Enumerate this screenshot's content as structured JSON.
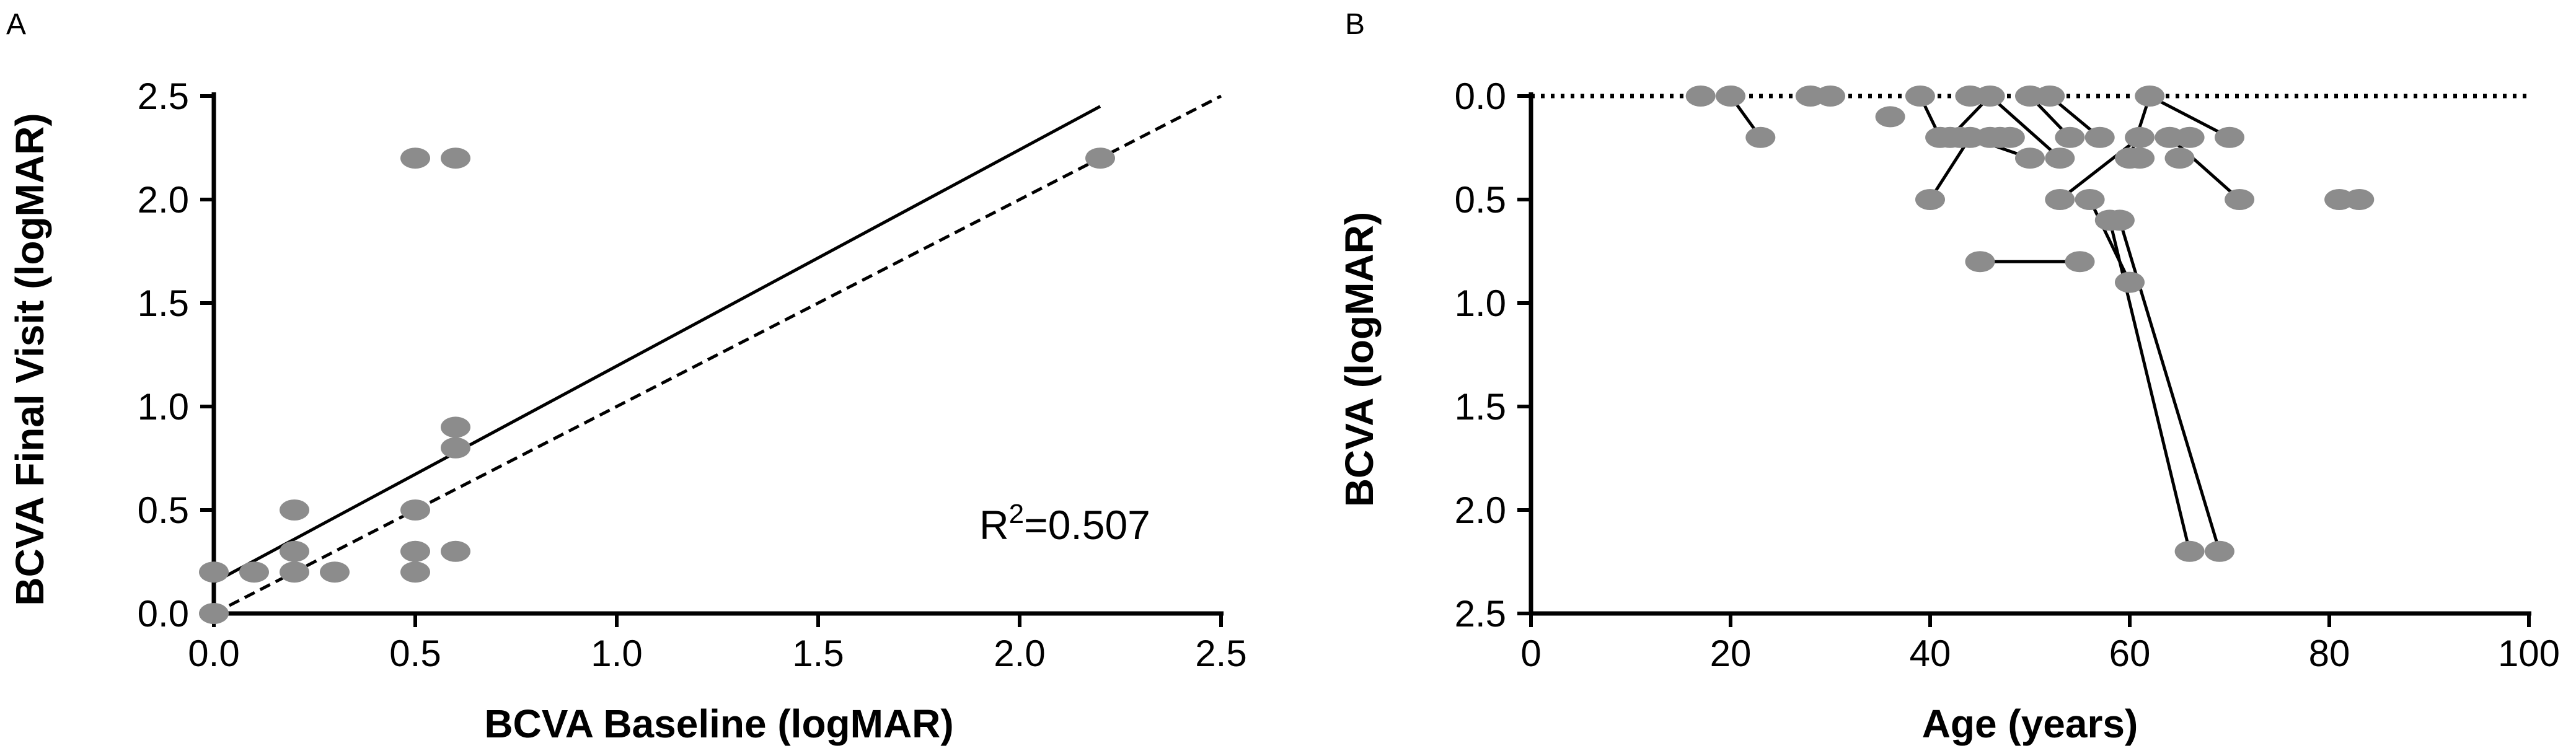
{
  "figure": {
    "panels": [
      "A",
      "B"
    ]
  },
  "chart_data": [
    {
      "type": "scatter",
      "panel": "A",
      "title": "",
      "xlabel": "BCVA Baseline (logMAR)",
      "ylabel": "BCVA Final Visit (logMAR)",
      "xlim": [
        0,
        2.5
      ],
      "ylim": [
        0,
        2.5
      ],
      "xticks": [
        0.0,
        0.5,
        1.0,
        1.5,
        2.0,
        2.5
      ],
      "xtick_labels": [
        "0.0",
        "0.5",
        "1.0",
        "1.5",
        "2.0",
        "2.5"
      ],
      "yticks": [
        0.0,
        0.5,
        1.0,
        1.5,
        2.0,
        2.5
      ],
      "ytick_labels": [
        "0.0",
        "0.5",
        "1.0",
        "1.5",
        "2.0",
        "2.5"
      ],
      "grid": false,
      "points": [
        {
          "x": 0.0,
          "y": 0.2
        },
        {
          "x": 0.0,
          "y": 0.0
        },
        {
          "x": 0.1,
          "y": 0.2
        },
        {
          "x": 0.2,
          "y": 0.5
        },
        {
          "x": 0.2,
          "y": 0.3
        },
        {
          "x": 0.2,
          "y": 0.2
        },
        {
          "x": 0.3,
          "y": 0.2
        },
        {
          "x": 0.5,
          "y": 2.2
        },
        {
          "x": 0.6,
          "y": 2.2
        },
        {
          "x": 0.5,
          "y": 0.5
        },
        {
          "x": 0.5,
          "y": 0.3
        },
        {
          "x": 0.5,
          "y": 0.2
        },
        {
          "x": 0.6,
          "y": 0.9
        },
        {
          "x": 0.6,
          "y": 0.8
        },
        {
          "x": 0.6,
          "y": 0.3
        },
        {
          "x": 2.2,
          "y": 2.2
        }
      ],
      "regression_line": {
        "x": [
          0.0,
          2.2
        ],
        "y": [
          0.15,
          2.45
        ],
        "style": "solid"
      },
      "identity_line": {
        "x": [
          0.0,
          2.5
        ],
        "y": [
          0.0,
          2.5
        ],
        "style": "dashed"
      },
      "annotation": {
        "base": "R",
        "sup": "2",
        "value": "=0.507"
      },
      "colors": {
        "marker": "#8c8c8c",
        "line": "#000000"
      }
    },
    {
      "type": "scatter",
      "panel": "B",
      "title": "",
      "xlabel": "Age (years)",
      "ylabel": "BCVA (logMAR)",
      "xlim": [
        0,
        100
      ],
      "ylim": [
        2.5,
        0.0
      ],
      "y_inverted": true,
      "xticks": [
        0,
        20,
        40,
        60,
        80,
        100
      ],
      "xtick_labels": [
        "0",
        "20",
        "40",
        "60",
        "80",
        "100"
      ],
      "yticks": [
        0.0,
        0.5,
        1.0,
        1.5,
        2.0,
        2.5
      ],
      "ytick_labels": [
        "0.0",
        "0.5",
        "1.0",
        "1.5",
        "2.0",
        "2.5"
      ],
      "grid": false,
      "reference_line": {
        "y": 0.0,
        "style": "dotted"
      },
      "points": [
        {
          "x": 17,
          "y": 0.0
        },
        {
          "x": 20,
          "y": 0.0
        },
        {
          "x": 23,
          "y": 0.2
        },
        {
          "x": 28,
          "y": 0.0
        },
        {
          "x": 30,
          "y": 0.0
        },
        {
          "x": 36,
          "y": 0.1
        },
        {
          "x": 39,
          "y": 0.0
        },
        {
          "x": 40,
          "y": 0.5
        },
        {
          "x": 41,
          "y": 0.2
        },
        {
          "x": 42,
          "y": 0.2
        },
        {
          "x": 43,
          "y": 0.2
        },
        {
          "x": 44,
          "y": 0.0
        },
        {
          "x": 44,
          "y": 0.2
        },
        {
          "x": 45,
          "y": 0.8
        },
        {
          "x": 46,
          "y": 0.0
        },
        {
          "x": 46,
          "y": 0.2
        },
        {
          "x": 47,
          "y": 0.2
        },
        {
          "x": 48,
          "y": 0.2
        },
        {
          "x": 50,
          "y": 0.0
        },
        {
          "x": 50,
          "y": 0.3
        },
        {
          "x": 52,
          "y": 0.0
        },
        {
          "x": 53,
          "y": 0.3
        },
        {
          "x": 53,
          "y": 0.5
        },
        {
          "x": 54,
          "y": 0.2
        },
        {
          "x": 55,
          "y": 0.8
        },
        {
          "x": 56,
          "y": 0.5
        },
        {
          "x": 57,
          "y": 0.2
        },
        {
          "x": 58,
          "y": 0.6
        },
        {
          "x": 59,
          "y": 0.6
        },
        {
          "x": 60,
          "y": 0.3
        },
        {
          "x": 60,
          "y": 0.9
        },
        {
          "x": 61,
          "y": 0.3
        },
        {
          "x": 62,
          "y": 0.0
        },
        {
          "x": 61,
          "y": 0.2
        },
        {
          "x": 64,
          "y": 0.2
        },
        {
          "x": 66,
          "y": 0.2
        },
        {
          "x": 65,
          "y": 0.3
        },
        {
          "x": 66,
          "y": 2.2
        },
        {
          "x": 69,
          "y": 2.2
        },
        {
          "x": 70,
          "y": 0.2
        },
        {
          "x": 71,
          "y": 0.5
        },
        {
          "x": 81,
          "y": 0.5
        },
        {
          "x": 83,
          "y": 0.5
        }
      ],
      "links": [
        [
          {
            "x": 20,
            "y": 0.0
          },
          {
            "x": 23,
            "y": 0.2
          }
        ],
        [
          {
            "x": 39,
            "y": 0.0
          },
          {
            "x": 41,
            "y": 0.2
          }
        ],
        [
          {
            "x": 40,
            "y": 0.5
          },
          {
            "x": 44,
            "y": 0.2
          }
        ],
        [
          {
            "x": 45,
            "y": 0.8
          },
          {
            "x": 55,
            "y": 0.8
          }
        ],
        [
          {
            "x": 44,
            "y": 0.2
          },
          {
            "x": 50,
            "y": 0.3
          }
        ],
        [
          {
            "x": 46,
            "y": 0.0
          },
          {
            "x": 42,
            "y": 0.2
          }
        ],
        [
          {
            "x": 46,
            "y": 0.0
          },
          {
            "x": 53,
            "y": 0.3
          }
        ],
        [
          {
            "x": 50,
            "y": 0.0
          },
          {
            "x": 54,
            "y": 0.2
          }
        ],
        [
          {
            "x": 52,
            "y": 0.0
          },
          {
            "x": 57,
            "y": 0.2
          }
        ],
        [
          {
            "x": 53,
            "y": 0.5
          },
          {
            "x": 61,
            "y": 0.2
          }
        ],
        [
          {
            "x": 56,
            "y": 0.5
          },
          {
            "x": 60,
            "y": 0.9
          }
        ],
        [
          {
            "x": 58,
            "y": 0.6
          },
          {
            "x": 66,
            "y": 2.2
          }
        ],
        [
          {
            "x": 59,
            "y": 0.6
          },
          {
            "x": 69,
            "y": 2.2
          }
        ],
        [
          {
            "x": 62,
            "y": 0.0
          },
          {
            "x": 70,
            "y": 0.2
          }
        ],
        [
          {
            "x": 62,
            "y": 0.0
          },
          {
            "x": 60,
            "y": 0.3
          }
        ],
        [
          {
            "x": 61,
            "y": 0.3
          },
          {
            "x": 61,
            "y": 0.2
          }
        ],
        [
          {
            "x": 64,
            "y": 0.2
          },
          {
            "x": 71,
            "y": 0.5
          }
        ]
      ],
      "colors": {
        "marker": "#8c8c8c",
        "line": "#000000"
      }
    }
  ]
}
